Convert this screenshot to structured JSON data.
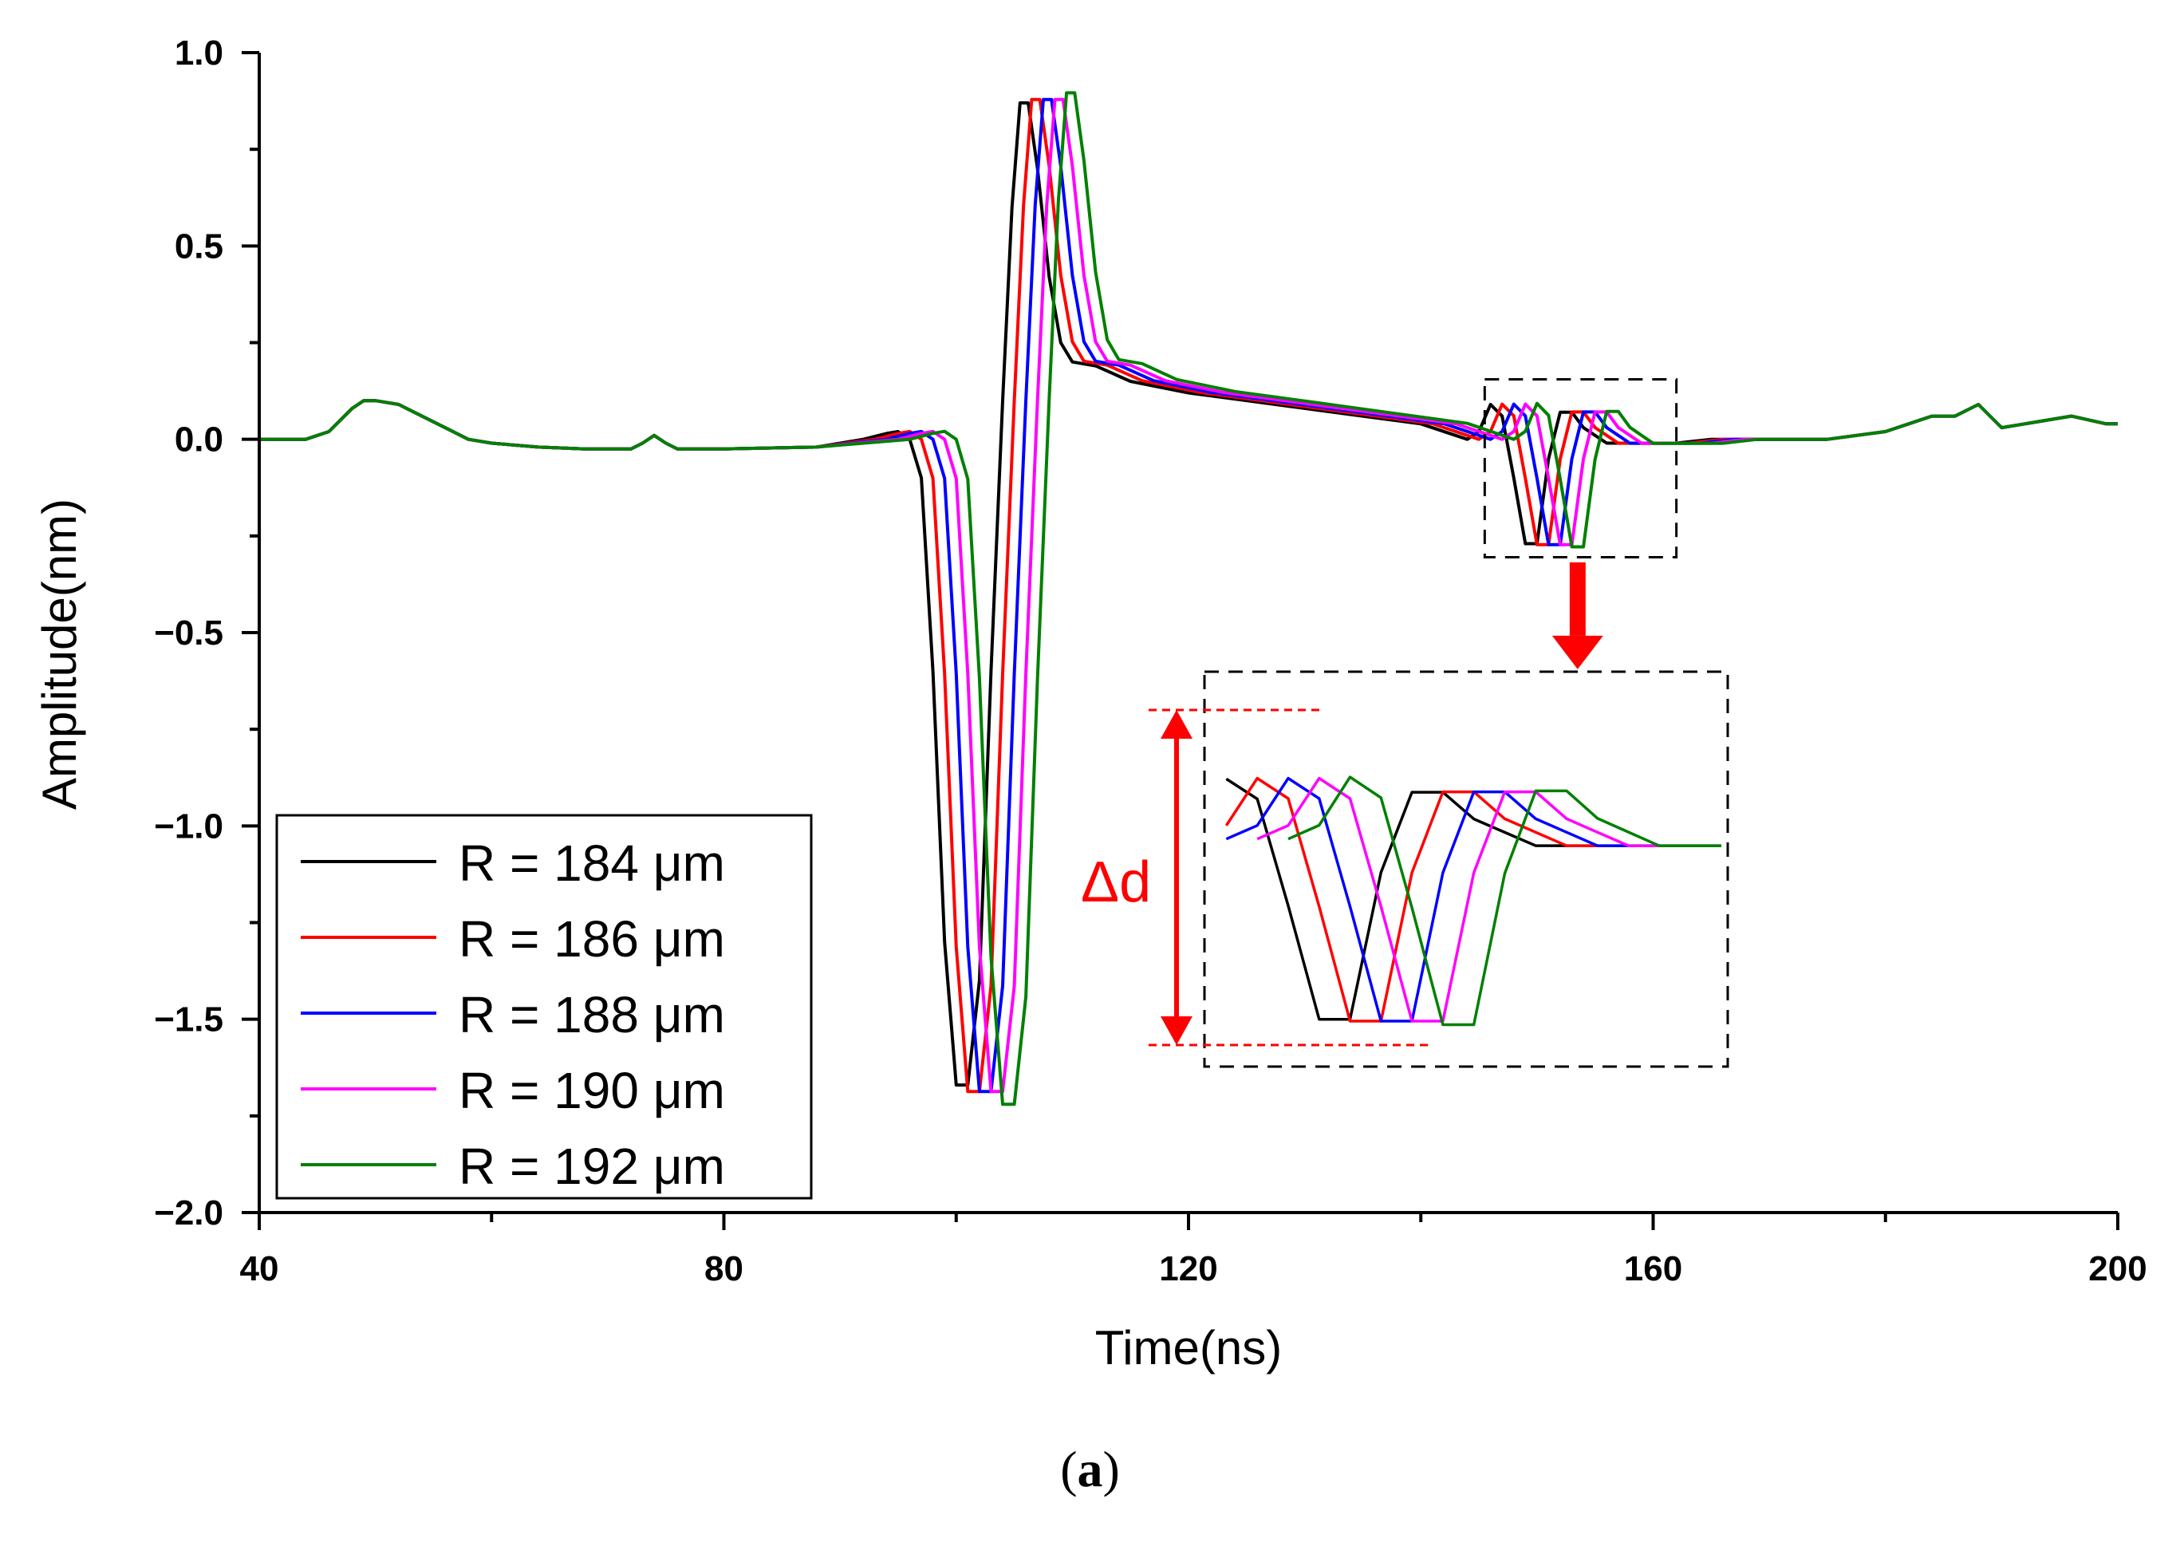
{
  "chart_data": {
    "type": "line",
    "xlabel": "Time(ns)",
    "ylabel": "Amplitude(nm)",
    "xlim": [
      40,
      200
    ],
    "ylim": [
      -2.0,
      1.0
    ],
    "xticks": [
      "40",
      "80",
      "120",
      "160",
      "200"
    ],
    "yticks": [
      "1.0",
      "0.5",
      "0.0",
      "−0.5",
      "−1.0",
      "−1.5",
      "−2.0"
    ],
    "legend_position": "bottom-left",
    "annotation": "Δd",
    "caption_label": "a",
    "series": [
      {
        "name": "R = 184 μm",
        "color": "#000000",
        "shift": 0.0,
        "scale": 1.0
      },
      {
        "name": "R = 186 μm",
        "color": "#ff0000",
        "shift": 1.0,
        "scale": 1.01
      },
      {
        "name": "R = 188 μm",
        "color": "#0000ff",
        "shift": 2.0,
        "scale": 1.01
      },
      {
        "name": "R = 190 μm",
        "color": "#ff00ff",
        "shift": 3.0,
        "scale": 1.01
      },
      {
        "name": "R = 192 μm",
        "color": "#008000",
        "shift": 4.0,
        "scale": 1.03
      }
    ],
    "base_curve_x": [
      40,
      44,
      46,
      48,
      49,
      50,
      52,
      54,
      56,
      58,
      60,
      64,
      68,
      72,
      73,
      74,
      75,
      76,
      80,
      88,
      92,
      94,
      95,
      96,
      97,
      98,
      99,
      100,
      101,
      102,
      103,
      104,
      104.8,
      105.5,
      106.2,
      107,
      108,
      109,
      110,
      112,
      115,
      120,
      125,
      130,
      135,
      140,
      144,
      145,
      146,
      147,
      148,
      149,
      150,
      151,
      152,
      153,
      154,
      155,
      156,
      158,
      162,
      165,
      170,
      175,
      180,
      182,
      184,
      186,
      188,
      189,
      190,
      192,
      196,
      199,
      200
    ],
    "base_curve_y": [
      0,
      0,
      0.02,
      0.08,
      0.1,
      0.1,
      0.09,
      0.06,
      0.03,
      0.0,
      -0.01,
      -0.02,
      -0.025,
      -0.025,
      -0.01,
      0.01,
      -0.01,
      -0.025,
      -0.025,
      -0.02,
      0.0,
      0.015,
      0.02,
      0.0,
      -0.1,
      -0.6,
      -1.3,
      -1.67,
      -1.67,
      -1.4,
      -0.6,
      0.1,
      0.6,
      0.87,
      0.87,
      0.7,
      0.42,
      0.25,
      0.2,
      0.19,
      0.15,
      0.12,
      0.1,
      0.08,
      0.06,
      0.04,
      0.0,
      0.02,
      0.09,
      0.06,
      -0.1,
      -0.27,
      -0.27,
      -0.05,
      0.07,
      0.07,
      0.03,
      0.01,
      -0.01,
      -0.01,
      -0.01,
      0.0,
      0.0,
      0.0,
      0.02,
      0.04,
      0.06,
      0.06,
      0.09,
      0.06,
      0.03,
      0.04,
      0.06,
      0.04,
      0.04
    ]
  }
}
